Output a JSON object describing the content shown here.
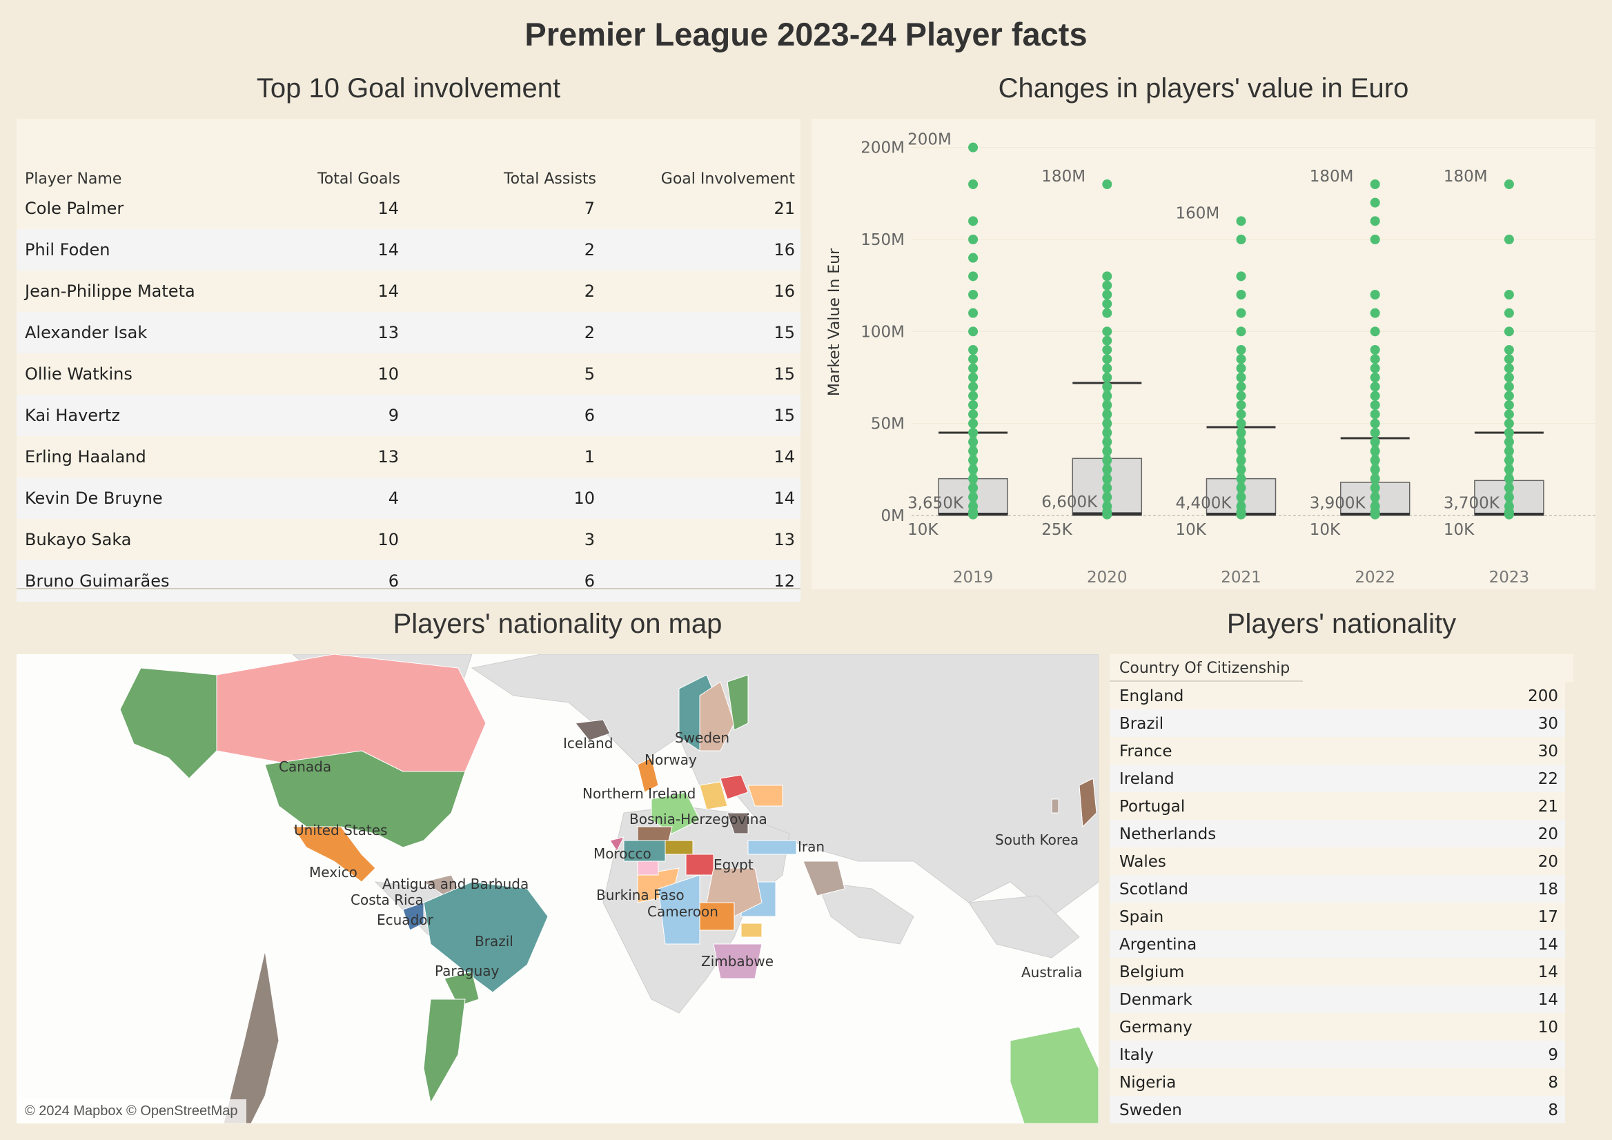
{
  "title": "Premier League 2023-24 Player facts",
  "goal_table": {
    "section_title": "Top 10 Goal involvement",
    "headers": [
      "Player Name",
      "Total Goals",
      "Total Assists",
      "Goal Involvement"
    ],
    "rows": [
      {
        "name": "Cole Palmer",
        "goals": "14",
        "assists": "7",
        "involvement": "21"
      },
      {
        "name": "Phil Foden",
        "goals": "14",
        "assists": "2",
        "involvement": "16"
      },
      {
        "name": "Jean-Philippe Mateta",
        "goals": "14",
        "assists": "2",
        "involvement": "16"
      },
      {
        "name": "Alexander Isak",
        "goals": "13",
        "assists": "2",
        "involvement": "15"
      },
      {
        "name": "Ollie Watkins",
        "goals": "10",
        "assists": "5",
        "involvement": "15"
      },
      {
        "name": "Kai Havertz",
        "goals": "9",
        "assists": "6",
        "involvement": "15"
      },
      {
        "name": "Erling Haaland",
        "goals": "13",
        "assists": "1",
        "involvement": "14"
      },
      {
        "name": "Kevin De Bruyne",
        "goals": "4",
        "assists": "10",
        "involvement": "14"
      },
      {
        "name": "Bukayo Saka",
        "goals": "10",
        "assists": "3",
        "involvement": "13"
      },
      {
        "name": "Bruno Guimarães",
        "goals": "6",
        "assists": "6",
        "involvement": "12"
      }
    ],
    "row_colors": [
      "#f8f3e6",
      "#f4f4f4"
    ]
  },
  "value_chart": {
    "section_title": "Changes in players' value in Euro",
    "chart_data": {
      "type": "box",
      "ylabel": "Market Value In Eur",
      "ylim": [
        0,
        210000000
      ],
      "y_ticks": [
        {
          "value": 0,
          "label": "0M"
        },
        {
          "value": 50000000,
          "label": "50M"
        },
        {
          "value": 100000000,
          "label": "100M"
        },
        {
          "value": 150000000,
          "label": "150M"
        },
        {
          "value": 200000000,
          "label": "200M"
        }
      ],
      "categories": [
        "2019",
        "2020",
        "2021",
        "2022",
        "2023"
      ],
      "series": [
        {
          "year": "2019",
          "max": 200000000,
          "max_label": "200M",
          "min_label": "10K",
          "median_label": "3,650K",
          "upper_whisker": 45000000,
          "q3": 20000000,
          "q1": 1000000,
          "points": [
            200,
            180,
            160,
            150,
            140,
            130,
            120,
            110,
            100,
            90,
            85,
            80,
            75,
            70,
            65,
            60,
            55,
            50,
            45,
            40,
            35,
            30,
            25,
            20,
            15,
            10,
            5,
            2,
            0.5
          ]
        },
        {
          "year": "2020",
          "max": 180000000,
          "max_label": "180M",
          "min_label": "25K",
          "median_label": "6,600K",
          "upper_whisker": 72000000,
          "q3": 31000000,
          "q1": 1500000,
          "points": [
            180,
            130,
            125,
            120,
            115,
            110,
            100,
            95,
            90,
            85,
            80,
            75,
            70,
            65,
            60,
            55,
            50,
            45,
            40,
            35,
            30,
            25,
            20,
            15,
            10,
            5,
            2,
            0.5
          ]
        },
        {
          "year": "2021",
          "max": 160000000,
          "max_label": "160M",
          "min_label": "10K",
          "median_label": "4,400K",
          "upper_whisker": 48000000,
          "q3": 20000000,
          "q1": 1000000,
          "points": [
            160,
            150,
            130,
            120,
            110,
            100,
            90,
            85,
            80,
            75,
            70,
            65,
            60,
            55,
            50,
            45,
            40,
            35,
            30,
            25,
            20,
            15,
            10,
            5,
            2,
            0.5
          ]
        },
        {
          "year": "2022",
          "max": 180000000,
          "max_label": "180M",
          "min_label": "10K",
          "median_label": "3,900K",
          "upper_whisker": 42000000,
          "q3": 18000000,
          "q1": 1000000,
          "points": [
            180,
            170,
            160,
            150,
            120,
            110,
            100,
            90,
            85,
            80,
            75,
            70,
            65,
            60,
            55,
            50,
            45,
            40,
            35,
            30,
            25,
            20,
            15,
            10,
            5,
            2,
            0.5
          ]
        },
        {
          "year": "2023",
          "max": 180000000,
          "max_label": "180M",
          "min_label": "10K",
          "median_label": "3,700K",
          "upper_whisker": 45000000,
          "q3": 19000000,
          "q1": 1000000,
          "points": [
            180,
            150,
            120,
            110,
            100,
            90,
            85,
            80,
            75,
            70,
            65,
            60,
            55,
            50,
            45,
            40,
            35,
            30,
            25,
            20,
            15,
            10,
            5,
            2,
            0.5
          ]
        }
      ],
      "point_color": "#4dbf73",
      "grid": true
    }
  },
  "map": {
    "section_title": "Players' nationality on map",
    "attribution": "© 2024 Mapbox © OpenStreetMap",
    "labels": [
      "Canada",
      "United States",
      "Mexico",
      "Antigua and Barbuda",
      "Costa Rica",
      "Ecuador",
      "Brazil",
      "Paraguay",
      "Iceland",
      "Sweden",
      "Norway",
      "Northern Ireland",
      "Bosnia-Herzegovina",
      "Morocco",
      "Egypt",
      "Iran",
      "South Korea",
      "Burkina Faso",
      "Cameroon",
      "Zimbabwe",
      "Australia"
    ]
  },
  "nationality": {
    "section_title": "Players' nationality",
    "header": "Country Of Citizenship",
    "rows": [
      {
        "country": "England",
        "count": "200"
      },
      {
        "country": "Brazil",
        "count": "30"
      },
      {
        "country": "France",
        "count": "30"
      },
      {
        "country": "Ireland",
        "count": "22"
      },
      {
        "country": "Portugal",
        "count": "21"
      },
      {
        "country": "Netherlands",
        "count": "20"
      },
      {
        "country": "Wales",
        "count": "20"
      },
      {
        "country": "Scotland",
        "count": "18"
      },
      {
        "country": "Spain",
        "count": "17"
      },
      {
        "country": "Argentina",
        "count": "14"
      },
      {
        "country": "Belgium",
        "count": "14"
      },
      {
        "country": "Denmark",
        "count": "14"
      },
      {
        "country": "Germany",
        "count": "10"
      },
      {
        "country": "Italy",
        "count": "9"
      },
      {
        "country": "Nigeria",
        "count": "8"
      },
      {
        "country": "Sweden",
        "count": "8"
      }
    ]
  }
}
